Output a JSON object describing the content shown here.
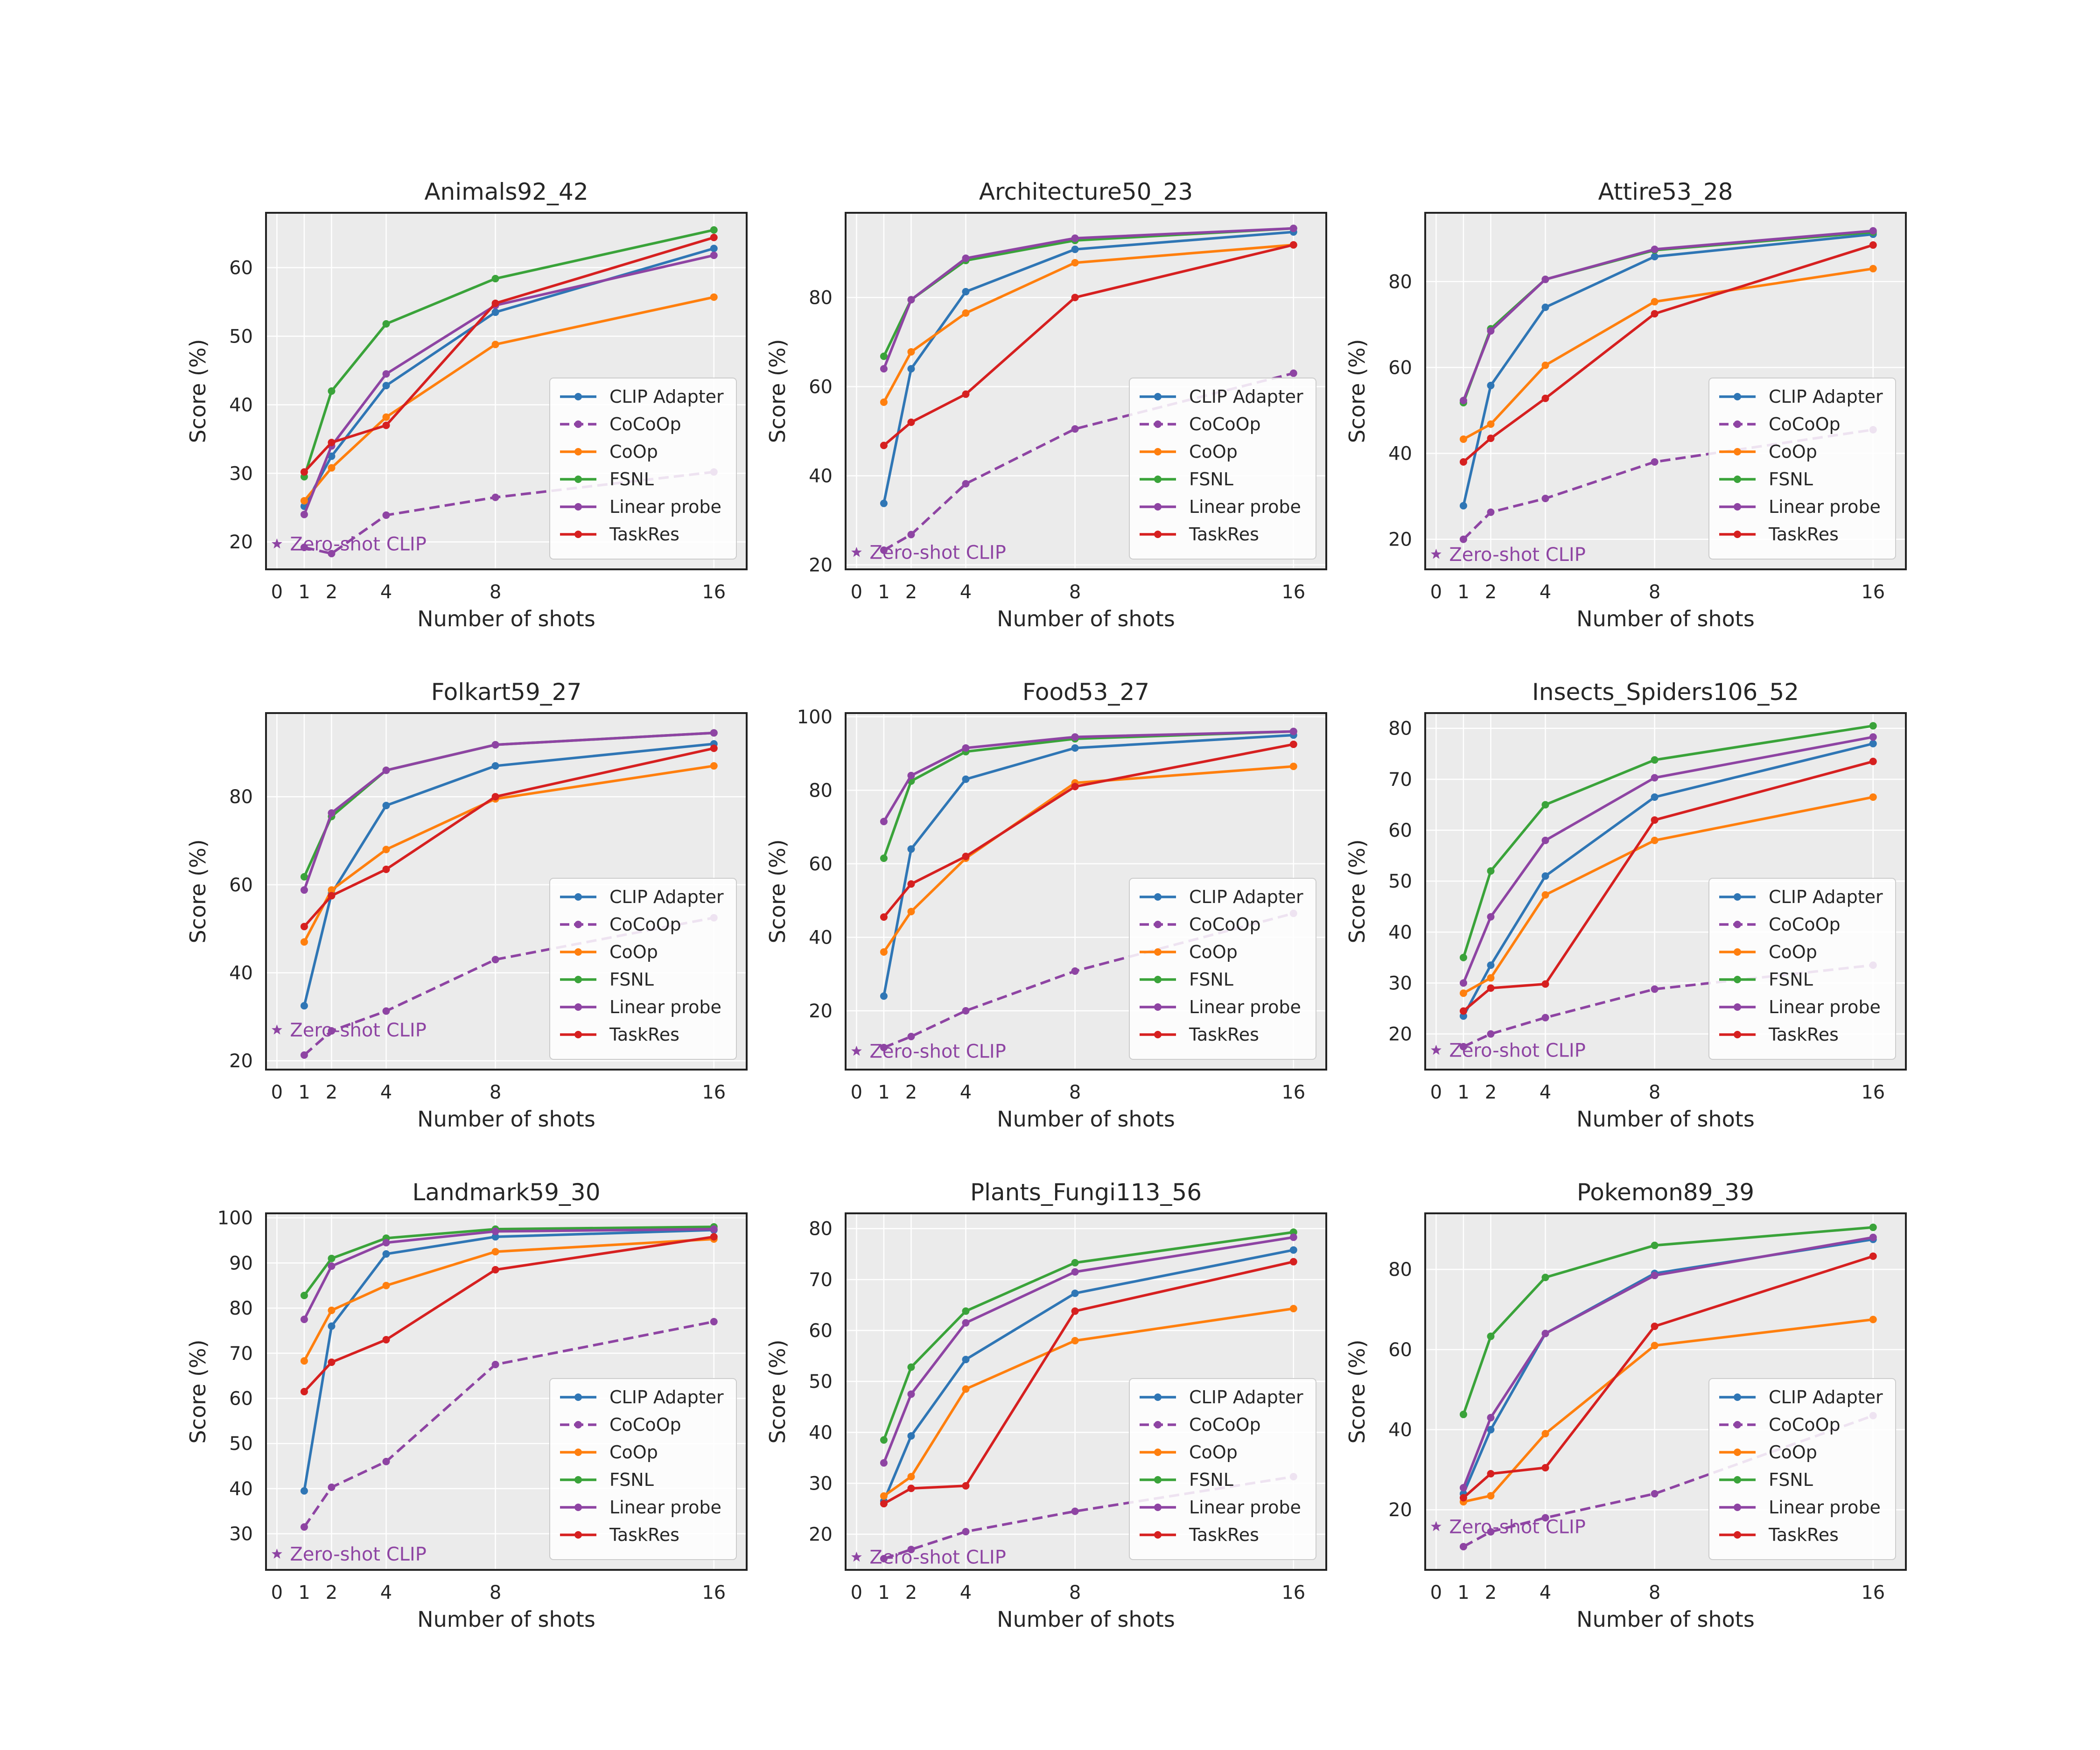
{
  "figure": {
    "xlabel": "Number of shots",
    "ylabel": "Score (%)",
    "x_ticks": [
      0,
      1,
      2,
      4,
      8,
      16
    ],
    "legend_position": "lower-right",
    "zero_shot_label": "Zero-shot CLIP",
    "series_styles": [
      {
        "name": "CLIP Adapter",
        "color": "#2f76b5",
        "dash": "solid"
      },
      {
        "name": "CoCoOp",
        "color": "#8e44a3",
        "dash": "dashed"
      },
      {
        "name": "CoOp",
        "color": "#ff7f0e",
        "dash": "solid"
      },
      {
        "name": "FSNL",
        "color": "#3aa33a",
        "dash": "solid"
      },
      {
        "name": "Linear probe",
        "color": "#8e44a3",
        "dash": "solid"
      },
      {
        "name": "TaskRes",
        "color": "#d62020",
        "dash": "solid"
      }
    ]
  },
  "chart_data": [
    {
      "type": "line",
      "title": "Animals92_42",
      "xlabel": "Number of shots",
      "ylabel": "Score (%)",
      "x": [
        1,
        2,
        4,
        8,
        16
      ],
      "xlim": [
        -0.4,
        17.2
      ],
      "ylim": [
        16.0,
        68.0
      ],
      "yticks": [
        20,
        30,
        40,
        50,
        60
      ],
      "zero_shot": 19.7,
      "series": [
        {
          "name": "CLIP Adapter",
          "values": [
            25.2,
            32.5,
            42.8,
            53.5,
            62.8
          ]
        },
        {
          "name": "CoCoOp",
          "values": [
            19.2,
            18.3,
            23.9,
            26.5,
            30.2
          ]
        },
        {
          "name": "CoOp",
          "values": [
            26.0,
            30.8,
            38.2,
            48.8,
            55.7
          ]
        },
        {
          "name": "FSNL",
          "values": [
            29.5,
            42.0,
            51.8,
            58.4,
            65.5
          ]
        },
        {
          "name": "Linear probe",
          "values": [
            24.0,
            34.0,
            44.5,
            54.5,
            61.8
          ]
        },
        {
          "name": "TaskRes",
          "values": [
            30.2,
            34.5,
            37.0,
            54.8,
            64.4
          ]
        }
      ]
    },
    {
      "type": "line",
      "title": "Architecture50_23",
      "xlabel": "Number of shots",
      "ylabel": "Score (%)",
      "x": [
        1,
        2,
        4,
        8,
        16
      ],
      "xlim": [
        -0.4,
        17.2
      ],
      "ylim": [
        19.0,
        99.0
      ],
      "yticks": [
        20,
        40,
        60,
        80
      ],
      "zero_shot": 22.8,
      "series": [
        {
          "name": "CLIP Adapter",
          "values": [
            33.8,
            64.0,
            81.3,
            90.8,
            94.7
          ]
        },
        {
          "name": "CoCoOp",
          "values": [
            23.3,
            26.8,
            38.2,
            50.5,
            63.0
          ]
        },
        {
          "name": "CoOp",
          "values": [
            56.5,
            67.8,
            76.5,
            87.8,
            91.8
          ]
        },
        {
          "name": "FSNL",
          "values": [
            66.8,
            79.5,
            88.3,
            92.8,
            95.5
          ]
        },
        {
          "name": "Linear probe",
          "values": [
            64.0,
            79.5,
            88.8,
            93.3,
            95.5
          ]
        },
        {
          "name": "TaskRes",
          "values": [
            46.8,
            52.0,
            58.3,
            80.0,
            91.8
          ]
        }
      ]
    },
    {
      "type": "line",
      "title": "Attire53_28",
      "xlabel": "Number of shots",
      "ylabel": "Score (%)",
      "x": [
        1,
        2,
        4,
        8,
        16
      ],
      "xlim": [
        -0.4,
        17.2
      ],
      "ylim": [
        13.0,
        96.0
      ],
      "yticks": [
        20,
        40,
        60,
        80
      ],
      "zero_shot": 16.5,
      "series": [
        {
          "name": "CLIP Adapter",
          "values": [
            27.8,
            55.8,
            74.0,
            85.8,
            91.0
          ]
        },
        {
          "name": "CoCoOp",
          "values": [
            20.0,
            26.3,
            29.5,
            38.0,
            45.5
          ]
        },
        {
          "name": "CoOp",
          "values": [
            43.3,
            46.8,
            60.5,
            75.3,
            83.0
          ]
        },
        {
          "name": "FSNL",
          "values": [
            51.8,
            69.0,
            80.5,
            87.3,
            91.5
          ]
        },
        {
          "name": "Linear probe",
          "values": [
            52.3,
            68.5,
            80.5,
            87.5,
            91.8
          ]
        },
        {
          "name": "TaskRes",
          "values": [
            38.0,
            43.5,
            52.8,
            72.5,
            88.5
          ]
        }
      ]
    },
    {
      "type": "line",
      "title": "Folkart59_27",
      "xlabel": "Number of shots",
      "ylabel": "Score (%)",
      "x": [
        1,
        2,
        4,
        8,
        16
      ],
      "xlim": [
        -0.4,
        17.2
      ],
      "ylim": [
        18.0,
        99.0
      ],
      "yticks": [
        20,
        40,
        60,
        80
      ],
      "zero_shot": 27.0,
      "series": [
        {
          "name": "CLIP Adapter",
          "values": [
            32.5,
            58.0,
            78.0,
            87.0,
            92.0
          ]
        },
        {
          "name": "CoCoOp",
          "values": [
            21.3,
            26.8,
            31.3,
            43.0,
            52.5
          ]
        },
        {
          "name": "CoOp",
          "values": [
            47.0,
            58.8,
            68.0,
            79.5,
            87.0
          ]
        },
        {
          "name": "FSNL",
          "values": [
            61.8,
            75.5,
            86.0,
            91.8,
            94.5
          ]
        },
        {
          "name": "Linear probe",
          "values": [
            58.8,
            76.3,
            86.0,
            91.8,
            94.5
          ]
        },
        {
          "name": "TaskRes",
          "values": [
            50.5,
            57.5,
            63.5,
            80.0,
            91.0
          ]
        }
      ]
    },
    {
      "type": "line",
      "title": "Food53_27",
      "xlabel": "Number of shots",
      "ylabel": "Score (%)",
      "x": [
        1,
        2,
        4,
        8,
        16
      ],
      "xlim": [
        -0.4,
        17.2
      ],
      "ylim": [
        4.0,
        101.0
      ],
      "yticks": [
        20,
        40,
        60,
        80,
        100
      ],
      "zero_shot": 9.0,
      "series": [
        {
          "name": "CLIP Adapter",
          "values": [
            24.0,
            64.0,
            83.0,
            91.5,
            95.0
          ]
        },
        {
          "name": "CoCoOp",
          "values": [
            10.0,
            13.0,
            20.0,
            30.8,
            46.5
          ]
        },
        {
          "name": "CoOp",
          "values": [
            36.0,
            47.0,
            61.5,
            82.0,
            86.5
          ]
        },
        {
          "name": "FSNL",
          "values": [
            61.5,
            82.5,
            90.5,
            94.0,
            96.0
          ]
        },
        {
          "name": "Linear probe",
          "values": [
            71.5,
            84.0,
            91.5,
            94.5,
            96.0
          ]
        },
        {
          "name": "TaskRes",
          "values": [
            45.5,
            54.5,
            62.0,
            81.0,
            92.5
          ]
        }
      ]
    },
    {
      "type": "line",
      "title": "Insects_Spiders106_52",
      "xlabel": "Number of shots",
      "ylabel": "Score (%)",
      "x": [
        1,
        2,
        4,
        8,
        16
      ],
      "xlim": [
        -0.4,
        17.2
      ],
      "ylim": [
        13.0,
        83.0
      ],
      "yticks": [
        20,
        30,
        40,
        50,
        60,
        70,
        80
      ],
      "zero_shot": 16.8,
      "series": [
        {
          "name": "CLIP Adapter",
          "values": [
            23.5,
            33.5,
            51.0,
            66.5,
            77.0
          ]
        },
        {
          "name": "CoCoOp",
          "values": [
            17.5,
            20.0,
            23.2,
            28.8,
            33.5
          ]
        },
        {
          "name": "CoOp",
          "values": [
            28.0,
            31.0,
            47.3,
            58.0,
            66.5
          ]
        },
        {
          "name": "FSNL",
          "values": [
            35.0,
            52.0,
            65.0,
            73.8,
            80.5
          ]
        },
        {
          "name": "Linear probe",
          "values": [
            30.0,
            43.0,
            58.0,
            70.3,
            78.3
          ]
        },
        {
          "name": "TaskRes",
          "values": [
            24.5,
            29.0,
            29.8,
            62.0,
            73.5
          ]
        }
      ]
    },
    {
      "type": "line",
      "title": "Landmark59_30",
      "xlabel": "Number of shots",
      "ylabel": "Score (%)",
      "x": [
        1,
        2,
        4,
        8,
        16
      ],
      "xlim": [
        -0.4,
        17.2
      ],
      "ylim": [
        22.0,
        101.0
      ],
      "yticks": [
        30,
        40,
        50,
        60,
        70,
        80,
        90,
        100
      ],
      "zero_shot": 25.5,
      "series": [
        {
          "name": "CLIP Adapter",
          "values": [
            39.5,
            76.0,
            92.0,
            95.8,
            97.3
          ]
        },
        {
          "name": "CoCoOp",
          "values": [
            31.5,
            40.3,
            46.0,
            67.5,
            77.0
          ]
        },
        {
          "name": "CoOp",
          "values": [
            68.3,
            79.5,
            85.0,
            92.5,
            95.3
          ]
        },
        {
          "name": "FSNL",
          "values": [
            82.8,
            91.0,
            95.5,
            97.5,
            98.0
          ]
        },
        {
          "name": "Linear probe",
          "values": [
            77.5,
            89.3,
            94.5,
            97.0,
            97.5
          ]
        },
        {
          "name": "TaskRes",
          "values": [
            61.5,
            68.0,
            73.0,
            88.5,
            95.8
          ]
        }
      ]
    },
    {
      "type": "line",
      "title": "Plants_Fungi113_56",
      "xlabel": "Number of shots",
      "ylabel": "Score (%)",
      "x": [
        1,
        2,
        4,
        8,
        16
      ],
      "xlim": [
        -0.4,
        17.2
      ],
      "ylim": [
        13.0,
        83.0
      ],
      "yticks": [
        20,
        30,
        40,
        50,
        60,
        70,
        80
      ],
      "zero_shot": 15.5,
      "series": [
        {
          "name": "CLIP Adapter",
          "values": [
            26.5,
            39.3,
            54.3,
            67.3,
            75.8
          ]
        },
        {
          "name": "CoCoOp",
          "values": [
            15.2,
            17.0,
            20.5,
            24.5,
            31.3
          ]
        },
        {
          "name": "CoOp",
          "values": [
            27.5,
            31.3,
            48.5,
            58.0,
            64.3
          ]
        },
        {
          "name": "FSNL",
          "values": [
            38.5,
            52.8,
            63.8,
            73.3,
            79.3
          ]
        },
        {
          "name": "Linear probe",
          "values": [
            34.0,
            47.5,
            61.5,
            71.5,
            78.3
          ]
        },
        {
          "name": "TaskRes",
          "values": [
            26.0,
            29.0,
            29.5,
            63.8,
            73.5
          ]
        }
      ]
    },
    {
      "type": "line",
      "title": "Pokemon89_39",
      "xlabel": "Number of shots",
      "ylabel": "Score (%)",
      "x": [
        1,
        2,
        4,
        8,
        16
      ],
      "xlim": [
        -0.4,
        17.2
      ],
      "ylim": [
        5.0,
        94.0
      ],
      "yticks": [
        20,
        40,
        60,
        80
      ],
      "zero_shot": 15.8,
      "series": [
        {
          "name": "CLIP Adapter",
          "values": [
            24.0,
            40.0,
            64.0,
            79.0,
            87.5
          ]
        },
        {
          "name": "CoCoOp",
          "values": [
            10.8,
            14.5,
            18.0,
            24.0,
            43.5
          ]
        },
        {
          "name": "CoOp",
          "values": [
            22.0,
            23.5,
            39.0,
            61.0,
            67.5
          ]
        },
        {
          "name": "FSNL",
          "values": [
            43.8,
            63.3,
            78.0,
            86.0,
            90.5
          ]
        },
        {
          "name": "Linear probe",
          "values": [
            25.5,
            43.0,
            64.0,
            78.5,
            88.0
          ]
        },
        {
          "name": "TaskRes",
          "values": [
            23.0,
            29.0,
            30.5,
            65.8,
            83.3
          ]
        }
      ]
    }
  ]
}
